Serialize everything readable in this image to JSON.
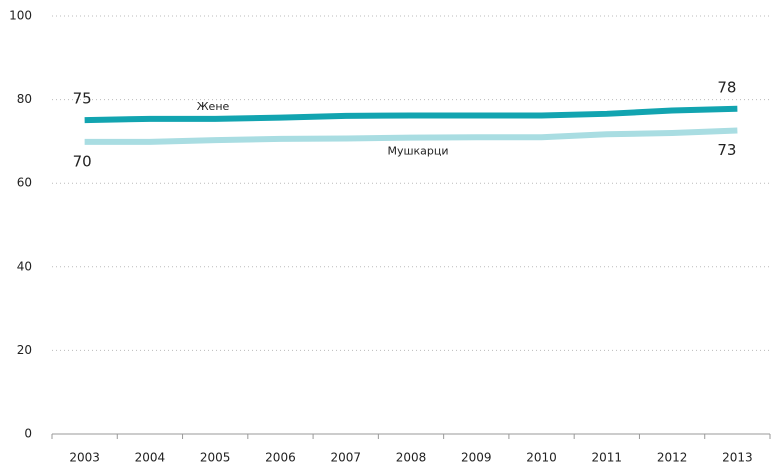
{
  "chart_data": {
    "type": "line",
    "categories": [
      "2003",
      "2004",
      "2005",
      "2006",
      "2007",
      "2008",
      "2009",
      "2010",
      "2011",
      "2012",
      "2013"
    ],
    "series": [
      {
        "name": "Жене",
        "color": "#12a4b0",
        "values": [
          75.1,
          75.4,
          75.4,
          75.7,
          76.1,
          76.2,
          76.2,
          76.2,
          76.6,
          77.4,
          77.8
        ],
        "value_labels": [
          "75",
          null,
          null,
          null,
          null,
          null,
          null,
          null,
          null,
          null,
          "78"
        ]
      },
      {
        "name": "Мушкарци",
        "color": "#a9dde2",
        "values": [
          69.9,
          69.9,
          70.3,
          70.6,
          70.7,
          70.9,
          71.0,
          71.0,
          71.7,
          72.0,
          72.6
        ],
        "value_labels": [
          "70",
          null,
          null,
          null,
          null,
          null,
          null,
          null,
          null,
          null,
          "73"
        ]
      }
    ],
    "ylim": [
      0,
      100
    ],
    "yticks": [
      0,
      20,
      40,
      60,
      80,
      100
    ],
    "grid": true
  }
}
